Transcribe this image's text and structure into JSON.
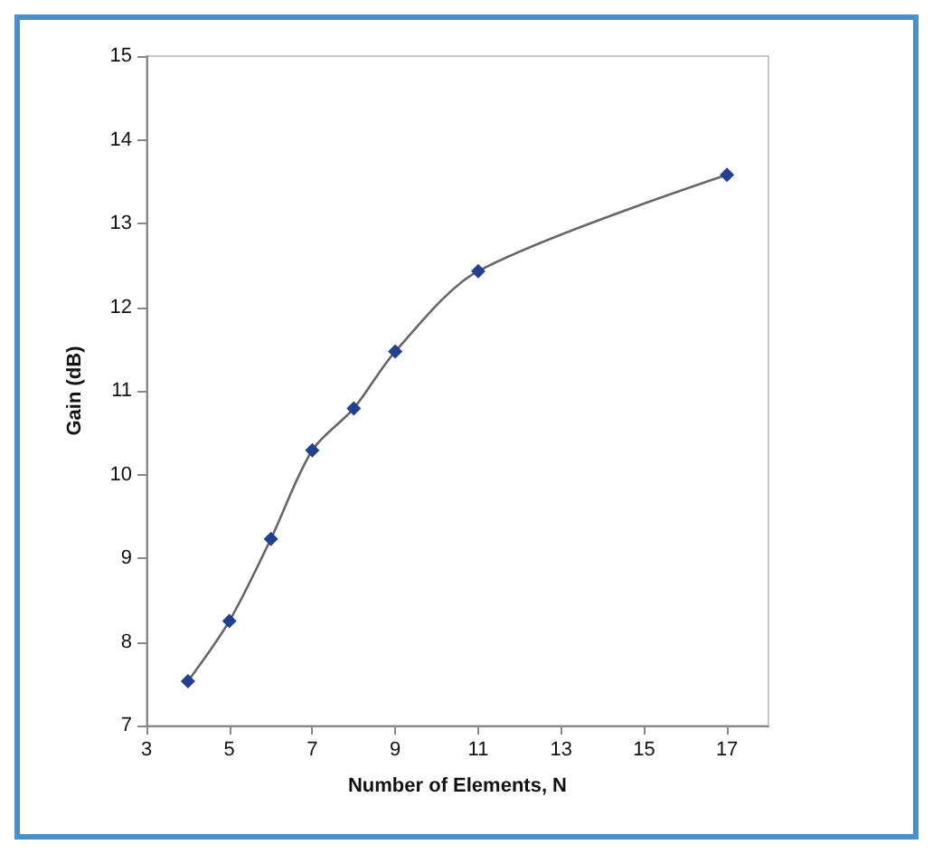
{
  "chart_data": {
    "type": "line",
    "xlabel": "Number of Elements, N",
    "ylabel": "Gain (dB)",
    "x": [
      4,
      5,
      6,
      7,
      8,
      9,
      11,
      17
    ],
    "series": [
      {
        "color": "#23408e",
        "values": [
          7.53,
          8.25,
          9.23,
          10.29,
          10.79,
          11.47,
          12.43,
          13.58
        ]
      }
    ],
    "xlim": [
      3,
      18
    ],
    "xticks": [
      3,
      5,
      7,
      9,
      11,
      13,
      15,
      17
    ],
    "ylim": [
      7,
      15
    ],
    "yticks": [
      7,
      8,
      9,
      10,
      11,
      12,
      13,
      14,
      15
    ],
    "grid": false,
    "marker": "diamond",
    "line_style": "solid"
  }
}
